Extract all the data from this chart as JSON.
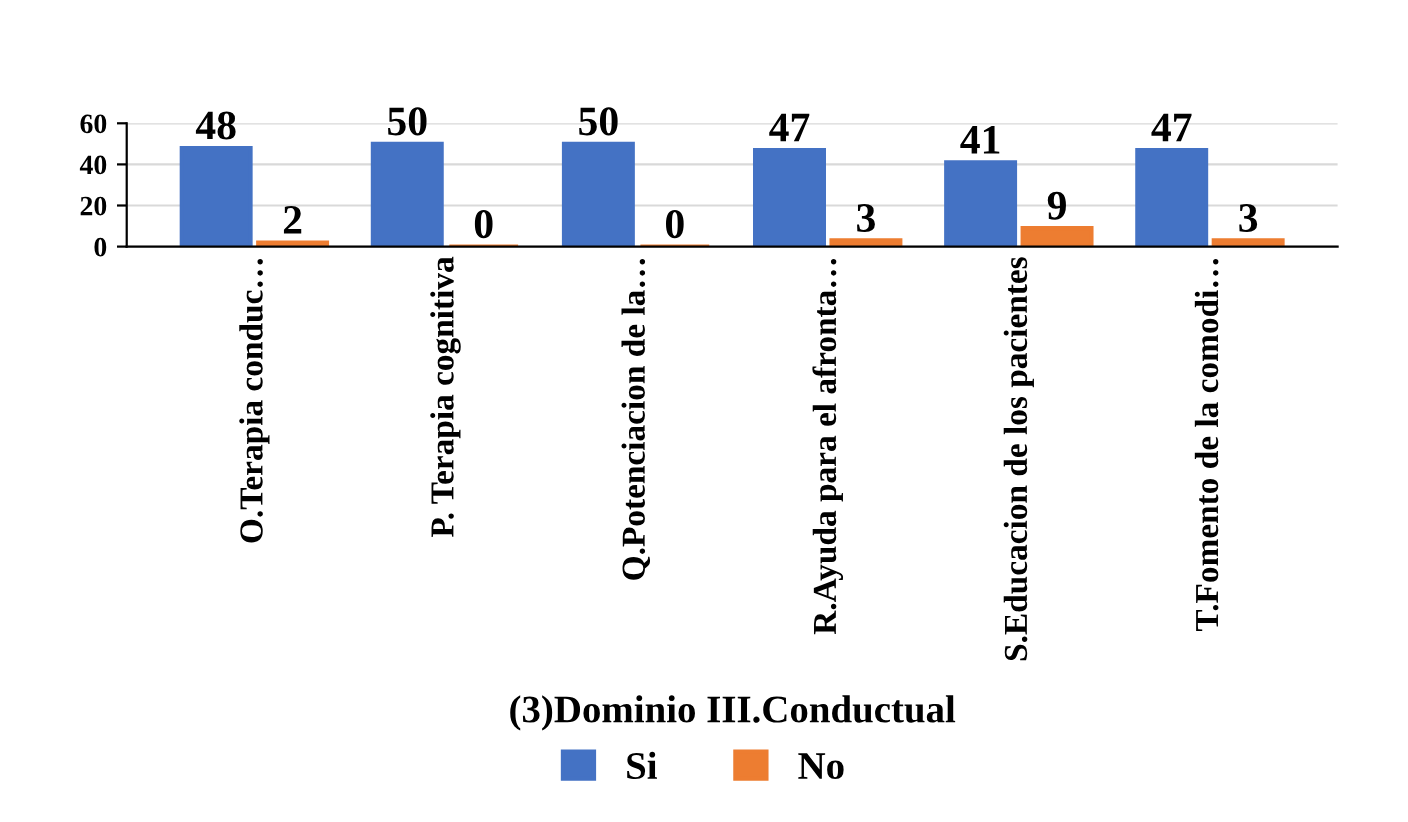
{
  "chart_data": {
    "type": "bar",
    "xlabel": "(3)Dominio III.Conductual",
    "categories": [
      "O.Terapia conduc…",
      "P. Terapia cognitiva",
      "Q.Potenciacion de la…",
      "R.Ayuda para el afronta…",
      "S.Educacion de los pacientes",
      "T.Fomento de la comodi…"
    ],
    "series": [
      {
        "name": "Si",
        "color": "#4472c4",
        "values": [
          48,
          50,
          50,
          47,
          41,
          47
        ]
      },
      {
        "name": "No",
        "color": "#ed7d31",
        "values": [
          2,
          0,
          0,
          3,
          9,
          3
        ]
      }
    ],
    "ylim": [
      0,
      60
    ],
    "yticks": [
      0,
      20,
      40,
      60
    ],
    "grid": "y",
    "data_labels": true,
    "legend": "bottom"
  }
}
